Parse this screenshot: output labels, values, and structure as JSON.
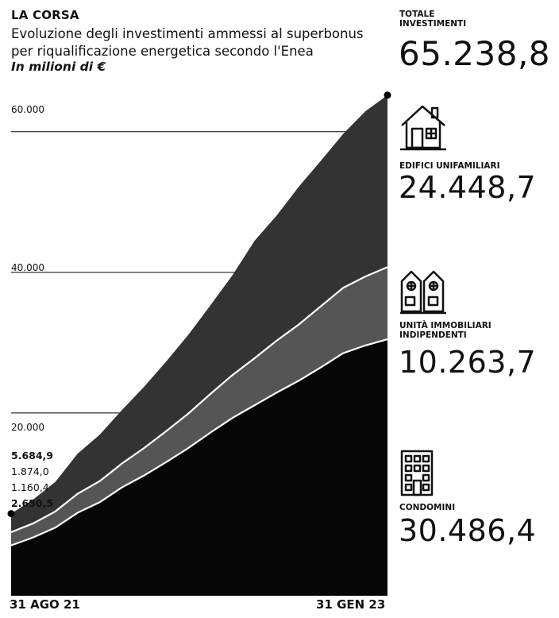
{
  "header": {
    "kicker": "LA CORSA",
    "title": "Evoluzione degli investimenti ammessi al superbonus per riqualificazione energetica secondo l'Enea",
    "unit": "In milioni di €"
  },
  "start_values": [
    "5.684,9",
    "1.874,0",
    "1.160,4",
    "2.650,5"
  ],
  "side_panel": {
    "total": {
      "label_line1": "TOTALE",
      "label_line2": "INVESTIMENTI",
      "value": "65.238,8"
    },
    "categories": [
      {
        "label_line1": "EDIFICI UNIFAMILIARI",
        "label_line2": "",
        "value": "24.448,7",
        "icon": "house-icon"
      },
      {
        "label_line1": "UNITÀ IMMOBILIARI",
        "label_line2": "INDIPENDENTI",
        "value": "10.263,7",
        "icon": "townhouse-icon"
      },
      {
        "label_line1": "CONDOMINI",
        "label_line2": "",
        "value": "30.486,4",
        "icon": "apartment-building-icon"
      }
    ]
  },
  "colors": {
    "condomini": "#060606",
    "unita": "#555555",
    "edifici": "#333333",
    "lines": "#ffffff",
    "grid": "#000000"
  },
  "chart_data": {
    "type": "area",
    "stacked": true,
    "x_labels": [
      "31 AGO 21",
      "31 GEN 23"
    ],
    "y_ticks": [
      20000,
      40000,
      60000
    ],
    "y_tick_labels": [
      "20.000",
      "40.000",
      "60.000"
    ],
    "ylim": [
      -6000,
      68000
    ],
    "x_points": 18,
    "series": [
      {
        "name": "CONDOMINI",
        "values": [
          1160,
          2300,
          3700,
          5800,
          7300,
          9400,
          11100,
          13000,
          15000,
          17200,
          19300,
          21100,
          22900,
          24600,
          26500,
          28500,
          29600,
          30486
        ]
      },
      {
        "name": "UNITÀ IMMOBILIARI INDIPENDENTI",
        "values": [
          1874,
          2000,
          2300,
          2700,
          3000,
          3400,
          3900,
          4400,
          4900,
          5500,
          6100,
          6700,
          7400,
          8000,
          8700,
          9300,
          9800,
          10264
        ]
      },
      {
        "name": "EDIFICI UNIFAMILIARI",
        "values": [
          2651,
          3400,
          4200,
          5700,
          6600,
          7600,
          8700,
          9900,
          11200,
          12600,
          14200,
          16700,
          17800,
          19600,
          20700,
          21900,
          23500,
          24449
        ]
      }
    ],
    "totals": [
      5685,
      7700,
      10200,
      14200,
      16900,
      20400,
      23700,
      27300,
      31100,
      35300,
      39600,
      44500,
      48100,
      52200,
      55900,
      59700,
      62900,
      65239
    ]
  }
}
